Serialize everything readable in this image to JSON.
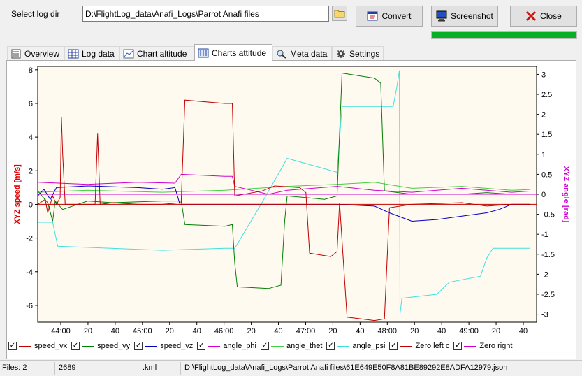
{
  "toolbar": {
    "select_log_dir_label": "Select log dir",
    "log_dir_value": "D:\\FlightLog_data\\Anafi_Logs\\Parrot Anafi files",
    "convert_label": "Convert",
    "screenshot_label": "Screenshot",
    "close_label": "Close",
    "progress": 1.0,
    "progress_color": "#06b025"
  },
  "tabs": [
    {
      "label": "Overview",
      "icon": "overview-icon"
    },
    {
      "label": "Log data",
      "icon": "table-icon"
    },
    {
      "label": "Chart altitude",
      "icon": "chart-icon"
    },
    {
      "label": "Charts attitude",
      "icon": "attitude-icon",
      "active": true
    },
    {
      "label": "Meta data",
      "icon": "magnifier-icon"
    },
    {
      "label": "Settings",
      "icon": "settings-icon"
    }
  ],
  "chart_data": {
    "type": "line",
    "ylabel": "XYZ speed [m/s]",
    "y2label": "XYZ angle [rad]",
    "ylim": [
      -7,
      8.2
    ],
    "y2lim": [
      -3.2,
      3.2
    ],
    "yticks": [
      "8",
      "6",
      "4",
      "2",
      "0",
      "-2",
      "-4",
      "-6"
    ],
    "y2ticks": [
      "3",
      "2.5",
      "2",
      "1.5",
      "1",
      "0.5",
      "0",
      "-0.5",
      "-1",
      "-1.5",
      "-2",
      "-2.5",
      "-3"
    ],
    "xticks": [
      "44:00",
      "20",
      "40",
      "45:00",
      "20",
      "40",
      "46:00",
      "20",
      "40",
      "47:00",
      "20",
      "40",
      "48:00",
      "20",
      "40",
      "49:00",
      "20",
      "40"
    ],
    "xlim": [
      0,
      400
    ],
    "grid": false,
    "legend_position": "bottom",
    "series": [
      {
        "name": "speed_vx",
        "axis": "left",
        "color": "#c00000",
        "checked": true,
        "points": [
          [
            0,
            0
          ],
          [
            6,
            0.3
          ],
          [
            8,
            -0.5
          ],
          [
            12,
            0.5
          ],
          [
            15,
            0
          ],
          [
            18,
            0.4
          ],
          [
            19,
            5.2
          ],
          [
            20,
            3
          ],
          [
            22,
            0
          ],
          [
            40,
            0
          ],
          [
            46,
            0
          ],
          [
            48,
            4.2
          ],
          [
            50,
            0
          ],
          [
            60,
            0.1
          ],
          [
            80,
            0
          ],
          [
            100,
            0
          ],
          [
            115,
            0.1
          ],
          [
            118,
            6.2
          ],
          [
            150,
            6
          ],
          [
            156,
            6
          ],
          [
            158,
            0.5
          ],
          [
            180,
            0.8
          ],
          [
            190,
            1.1
          ],
          [
            210,
            1
          ],
          [
            215,
            0.7
          ],
          [
            218,
            -2.9
          ],
          [
            235,
            -3.1
          ],
          [
            240,
            -2.8
          ],
          [
            242,
            0.1
          ],
          [
            248,
            -6.7
          ],
          [
            270,
            -6.9
          ],
          [
            278,
            -6.8
          ],
          [
            282,
            -0.2
          ],
          [
            300,
            0
          ],
          [
            340,
            0.1
          ],
          [
            360,
            -0.1
          ],
          [
            380,
            0
          ],
          [
            395,
            0
          ]
        ]
      },
      {
        "name": "speed_vy",
        "axis": "left",
        "color": "#008000",
        "checked": true,
        "points": [
          [
            0,
            0.8
          ],
          [
            8,
            0.1
          ],
          [
            12,
            -1
          ],
          [
            14,
            0.2
          ],
          [
            20,
            -0.3
          ],
          [
            40,
            0.2
          ],
          [
            60,
            0.1
          ],
          [
            100,
            0.2
          ],
          [
            115,
            0.2
          ],
          [
            118,
            -1.2
          ],
          [
            150,
            -1.3
          ],
          [
            156,
            -1.2
          ],
          [
            158,
            -3.5
          ],
          [
            160,
            -4.9
          ],
          [
            185,
            -5
          ],
          [
            195,
            -4.8
          ],
          [
            198,
            -1
          ],
          [
            200,
            0.5
          ],
          [
            215,
            0.4
          ],
          [
            230,
            0.3
          ],
          [
            240,
            0.5
          ],
          [
            244,
            7.8
          ],
          [
            270,
            7.5
          ],
          [
            275,
            7.2
          ],
          [
            278,
            0.8
          ],
          [
            300,
            0.6
          ],
          [
            340,
            0.6
          ],
          [
            360,
            0.7
          ],
          [
            380,
            0.6
          ],
          [
            395,
            0.6
          ]
        ]
      },
      {
        "name": "speed_vz",
        "axis": "left",
        "color": "#0000c0",
        "checked": true,
        "points": [
          [
            0,
            0.5
          ],
          [
            5,
            0.9
          ],
          [
            10,
            0.3
          ],
          [
            15,
            1
          ],
          [
            40,
            1.1
          ],
          [
            80,
            1
          ],
          [
            100,
            0.9
          ],
          [
            110,
            1
          ],
          [
            114,
            0
          ],
          [
            150,
            0
          ],
          [
            160,
            0
          ],
          [
            200,
            0
          ],
          [
            240,
            0
          ],
          [
            270,
            -0.1
          ],
          [
            282,
            -0.5
          ],
          [
            300,
            -1
          ],
          [
            320,
            -0.9
          ],
          [
            340,
            -0.7
          ],
          [
            360,
            -0.5
          ],
          [
            370,
            -0.3
          ],
          [
            380,
            0
          ],
          [
            395,
            0
          ]
        ]
      },
      {
        "name": "angle_phi",
        "axis": "right",
        "color": "#d000d0",
        "checked": true,
        "points": [
          [
            0,
            0.3
          ],
          [
            40,
            0.25
          ],
          [
            80,
            0.3
          ],
          [
            110,
            0.28
          ],
          [
            115,
            0.5
          ],
          [
            150,
            0.45
          ],
          [
            156,
            0.45
          ],
          [
            158,
            0.2
          ],
          [
            185,
            0
          ],
          [
            200,
            0.1
          ],
          [
            240,
            0.2
          ],
          [
            270,
            0.1
          ],
          [
            300,
            0.05
          ],
          [
            340,
            0.15
          ],
          [
            380,
            0.05
          ],
          [
            395,
            0.08
          ]
        ]
      },
      {
        "name": "angle_thet",
        "axis": "right",
        "color": "#40d040",
        "checked": true,
        "points": [
          [
            0,
            0.05
          ],
          [
            40,
            0.1
          ],
          [
            100,
            0.05
          ],
          [
            150,
            0.1
          ],
          [
            200,
            0.2
          ],
          [
            240,
            0.25
          ],
          [
            270,
            0.3
          ],
          [
            300,
            0.15
          ],
          [
            340,
            0.2
          ],
          [
            380,
            0.1
          ],
          [
            395,
            0.12
          ]
        ]
      },
      {
        "name": "angle_psi",
        "axis": "right",
        "color": "#40e0e0",
        "checked": true,
        "points": [
          [
            0,
            -0.7
          ],
          [
            12,
            -0.7
          ],
          [
            16,
            -1.3
          ],
          [
            100,
            -1.4
          ],
          [
            150,
            -1.35
          ],
          [
            158,
            -1.35
          ],
          [
            180,
            -0.2
          ],
          [
            200,
            0.9
          ],
          [
            240,
            0.55
          ],
          [
            244,
            2.2
          ],
          [
            285,
            2.2
          ],
          [
            288,
            2.7
          ],
          [
            290,
            3.1
          ],
          [
            290.5,
            -3.0
          ],
          [
            292,
            -2.6
          ],
          [
            320,
            -2.5
          ],
          [
            330,
            -2.2
          ],
          [
            355,
            -2.05
          ],
          [
            360,
            -1.6
          ],
          [
            365,
            -1.35
          ],
          [
            395,
            -1.35
          ]
        ]
      },
      {
        "name": "Zero left c",
        "axis": "left",
        "color": "#c00000",
        "checked": true,
        "points": [
          [
            0,
            0
          ],
          [
            400,
            0
          ]
        ]
      },
      {
        "name": "Zero right",
        "axis": "right",
        "color": "#d000d0",
        "checked": true,
        "points": [
          [
            0,
            0
          ],
          [
            400,
            0
          ]
        ]
      }
    ]
  },
  "statusbar": {
    "files": "Files: 2",
    "count": "2689",
    "ext": ".kml",
    "path": "D:\\FlightLog_data\\Anafi_Logs\\Parrot Anafi files\\61E649E50F8A81BE89292E8ADFA12979.json"
  }
}
